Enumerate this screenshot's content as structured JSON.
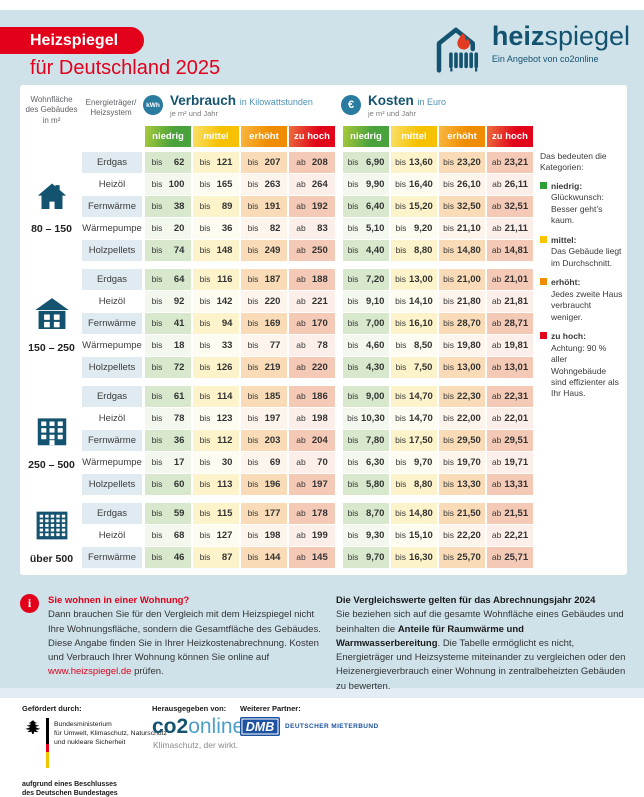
{
  "header": {
    "badge": "Heizspiegel",
    "subtitle": "für Deutschland 2025",
    "logo_bold": "heiz",
    "logo_light": "spiegel",
    "logo_tagline": "Ein Angebot von co2online"
  },
  "table": {
    "col_size_header": "Wohnfläche des Gebäudes in m²",
    "col_fuel_header": "Energie­träger/ Heizsystem",
    "verbrauch": {
      "icon": "kWh",
      "title": "Verbrauch",
      "unit": "in Kilowattstunden",
      "sub": "je m² und Jahr"
    },
    "kosten": {
      "icon": "€",
      "title": "Kosten",
      "unit": "in Euro",
      "sub": "je m² und Jahr"
    },
    "categories": [
      "niedrig",
      "mittel",
      "erhöht",
      "zu hoch"
    ],
    "blocks": [
      {
        "label": "80 – 150",
        "icon": "house-small",
        "rows": [
          {
            "fuel": "Erdgas",
            "verbrauch": [
              [
                "bis",
                "62"
              ],
              [
                "bis",
                "121"
              ],
              [
                "bis",
                "207"
              ],
              [
                "ab",
                "208"
              ]
            ],
            "kosten": [
              [
                "bis",
                "6,90"
              ],
              [
                "bis",
                "13,60"
              ],
              [
                "bis",
                "23,20"
              ],
              [
                "ab",
                "23,21"
              ]
            ]
          },
          {
            "fuel": "Heizöl",
            "verbrauch": [
              [
                "bis",
                "100"
              ],
              [
                "bis",
                "165"
              ],
              [
                "bis",
                "263"
              ],
              [
                "ab",
                "264"
              ]
            ],
            "kosten": [
              [
                "bis",
                "9,90"
              ],
              [
                "bis",
                "16,40"
              ],
              [
                "bis",
                "26,10"
              ],
              [
                "ab",
                "26,11"
              ]
            ]
          },
          {
            "fuel": "Fernwärme",
            "verbrauch": [
              [
                "bis",
                "38"
              ],
              [
                "bis",
                "89"
              ],
              [
                "bis",
                "191"
              ],
              [
                "ab",
                "192"
              ]
            ],
            "kosten": [
              [
                "bis",
                "6,40"
              ],
              [
                "bis",
                "15,20"
              ],
              [
                "bis",
                "32,50"
              ],
              [
                "ab",
                "32,51"
              ]
            ]
          },
          {
            "fuel": "Wärmepumpe",
            "verbrauch": [
              [
                "bis",
                "20"
              ],
              [
                "bis",
                "36"
              ],
              [
                "bis",
                "82"
              ],
              [
                "ab",
                "83"
              ]
            ],
            "kosten": [
              [
                "bis",
                "5,10"
              ],
              [
                "bis",
                "9,20"
              ],
              [
                "bis",
                "21,10"
              ],
              [
                "ab",
                "21,11"
              ]
            ]
          },
          {
            "fuel": "Holzpellets",
            "verbrauch": [
              [
                "bis",
                "74"
              ],
              [
                "bis",
                "148"
              ],
              [
                "bis",
                "249"
              ],
              [
                "ab",
                "250"
              ]
            ],
            "kosten": [
              [
                "bis",
                "4,40"
              ],
              [
                "bis",
                "8,80"
              ],
              [
                "bis",
                "14,80"
              ],
              [
                "ab",
                "14,81"
              ]
            ]
          }
        ]
      },
      {
        "label": "150 – 250",
        "icon": "house-medium",
        "rows": [
          {
            "fuel": "Erdgas",
            "verbrauch": [
              [
                "bis",
                "64"
              ],
              [
                "bis",
                "116"
              ],
              [
                "bis",
                "187"
              ],
              [
                "ab",
                "188"
              ]
            ],
            "kosten": [
              [
                "bis",
                "7,20"
              ],
              [
                "bis",
                "13,00"
              ],
              [
                "bis",
                "21,00"
              ],
              [
                "ab",
                "21,01"
              ]
            ]
          },
          {
            "fuel": "Heizöl",
            "verbrauch": [
              [
                "bis",
                "92"
              ],
              [
                "bis",
                "142"
              ],
              [
                "bis",
                "220"
              ],
              [
                "ab",
                "221"
              ]
            ],
            "kosten": [
              [
                "bis",
                "9,10"
              ],
              [
                "bis",
                "14,10"
              ],
              [
                "bis",
                "21,80"
              ],
              [
                "ab",
                "21,81"
              ]
            ]
          },
          {
            "fuel": "Fernwärme",
            "verbrauch": [
              [
                "bis",
                "41"
              ],
              [
                "bis",
                "94"
              ],
              [
                "bis",
                "169"
              ],
              [
                "ab",
                "170"
              ]
            ],
            "kosten": [
              [
                "bis",
                "7,00"
              ],
              [
                "bis",
                "16,10"
              ],
              [
                "bis",
                "28,70"
              ],
              [
                "ab",
                "28,71"
              ]
            ]
          },
          {
            "fuel": "Wärmepumpe",
            "verbrauch": [
              [
                "bis",
                "18"
              ],
              [
                "bis",
                "33"
              ],
              [
                "bis",
                "77"
              ],
              [
                "ab",
                "78"
              ]
            ],
            "kosten": [
              [
                "bis",
                "4,60"
              ],
              [
                "bis",
                "8,50"
              ],
              [
                "bis",
                "19,80"
              ],
              [
                "ab",
                "19,81"
              ]
            ]
          },
          {
            "fuel": "Holzpellets",
            "verbrauch": [
              [
                "bis",
                "72"
              ],
              [
                "bis",
                "126"
              ],
              [
                "bis",
                "219"
              ],
              [
                "ab",
                "220"
              ]
            ],
            "kosten": [
              [
                "bis",
                "4,30"
              ],
              [
                "bis",
                "7,50"
              ],
              [
                "bis",
                "13,00"
              ],
              [
                "ab",
                "13,01"
              ]
            ]
          }
        ]
      },
      {
        "label": "250 – 500",
        "icon": "building",
        "rows": [
          {
            "fuel": "Erdgas",
            "verbrauch": [
              [
                "bis",
                "61"
              ],
              [
                "bis",
                "114"
              ],
              [
                "bis",
                "185"
              ],
              [
                "ab",
                "186"
              ]
            ],
            "kosten": [
              [
                "bis",
                "9,00"
              ],
              [
                "bis",
                "14,70"
              ],
              [
                "bis",
                "22,30"
              ],
              [
                "ab",
                "22,31"
              ]
            ]
          },
          {
            "fuel": "Heizöl",
            "verbrauch": [
              [
                "bis",
                "78"
              ],
              [
                "bis",
                "123"
              ],
              [
                "bis",
                "197"
              ],
              [
                "ab",
                "198"
              ]
            ],
            "kosten": [
              [
                "bis",
                "10,30"
              ],
              [
                "bis",
                "14,70"
              ],
              [
                "bis",
                "22,00"
              ],
              [
                "ab",
                "22,01"
              ]
            ]
          },
          {
            "fuel": "Fernwärme",
            "verbrauch": [
              [
                "bis",
                "36"
              ],
              [
                "bis",
                "112"
              ],
              [
                "bis",
                "203"
              ],
              [
                "ab",
                "204"
              ]
            ],
            "kosten": [
              [
                "bis",
                "7,80"
              ],
              [
                "bis",
                "17,50"
              ],
              [
                "bis",
                "29,50"
              ],
              [
                "ab",
                "29,51"
              ]
            ]
          },
          {
            "fuel": "Wärmepumpe",
            "verbrauch": [
              [
                "bis",
                "17"
              ],
              [
                "bis",
                "30"
              ],
              [
                "bis",
                "69"
              ],
              [
                "ab",
                "70"
              ]
            ],
            "kosten": [
              [
                "bis",
                "6,30"
              ],
              [
                "bis",
                "9,70"
              ],
              [
                "bis",
                "19,70"
              ],
              [
                "ab",
                "19,71"
              ]
            ]
          },
          {
            "fuel": "Holzpellets",
            "verbrauch": [
              [
                "bis",
                "60"
              ],
              [
                "bis",
                "113"
              ],
              [
                "bis",
                "196"
              ],
              [
                "ab",
                "197"
              ]
            ],
            "kosten": [
              [
                "bis",
                "5,80"
              ],
              [
                "bis",
                "8,80"
              ],
              [
                "bis",
                "13,30"
              ],
              [
                "ab",
                "13,31"
              ]
            ]
          }
        ]
      },
      {
        "label": "über 500",
        "icon": "tower",
        "rows": [
          {
            "fuel": "Erdgas",
            "verbrauch": [
              [
                "bis",
                "59"
              ],
              [
                "bis",
                "115"
              ],
              [
                "bis",
                "177"
              ],
              [
                "ab",
                "178"
              ]
            ],
            "kosten": [
              [
                "bis",
                "8,70"
              ],
              [
                "bis",
                "14,80"
              ],
              [
                "bis",
                "21,50"
              ],
              [
                "ab",
                "21,51"
              ]
            ]
          },
          {
            "fuel": "Heizöl",
            "verbrauch": [
              [
                "bis",
                "68"
              ],
              [
                "bis",
                "127"
              ],
              [
                "bis",
                "198"
              ],
              [
                "ab",
                "199"
              ]
            ],
            "kosten": [
              [
                "bis",
                "9,30"
              ],
              [
                "bis",
                "15,10"
              ],
              [
                "bis",
                "22,20"
              ],
              [
                "ab",
                "22,21"
              ]
            ]
          },
          {
            "fuel": "Fernwärme",
            "verbrauch": [
              [
                "bis",
                "46"
              ],
              [
                "bis",
                "87"
              ],
              [
                "bis",
                "144"
              ],
              [
                "ab",
                "145"
              ]
            ],
            "kosten": [
              [
                "bis",
                "9,70"
              ],
              [
                "bis",
                "16,30"
              ],
              [
                "bis",
                "25,70"
              ],
              [
                "ab",
                "25,71"
              ]
            ]
          }
        ]
      }
    ]
  },
  "legend": {
    "title": "Das bedeuten die Kategorien:",
    "items": [
      {
        "title": "niedrig:",
        "desc": "Glückwunsch: Besser geht’s kaum.",
        "color": "#2e9e36"
      },
      {
        "title": "mittel:",
        "desc": "Das Gebäude liegt im Durchschnitt.",
        "color": "#fdc400"
      },
      {
        "title": "erhöht:",
        "desc": "Jedes zweite Haus verbraucht weniger.",
        "color": "#f08c00"
      },
      {
        "title": "zu hoch:",
        "desc": "Achtung: 90 % aller Wohngebäude sind effizienter als Ihr Haus.",
        "color": "#e2051a"
      }
    ]
  },
  "info_left": {
    "heading": "Sie wohnen in einer Wohnung?",
    "body1": "Dann brauchen Sie für den Vergleich mit dem Heizspiegel nicht Ihre Wohnungsfläche, sondern die Gesamtfläche des Gebäudes. Diese Angabe finden Sie in Ihrer Heizkosten­abrechnung. Kosten und Verbrauch Ihrer Wohnung können Sie online auf ",
    "link": "www.heizspiegel.de",
    "body2": " prüfen."
  },
  "info_right": {
    "heading": "Die Vergleichswerte gelten für das Abrechnungsjahr 2024",
    "body1": "Sie beziehen sich auf die gesamte Wohnfläche eines Gebäudes und beinhalten die ",
    "bold": "Anteile für Raumwärme und Warmwasserbereitung",
    "body2": ". Die Tabelle ermöglicht es nicht, Energieträger und Heizsysteme miteinander zu vergleichen oder den Heizenergieverbrauch einer Wohnung in zentralbeheizten Gebäuden zu bewerten."
  },
  "footer": {
    "funding_label": "Gefördert durch:",
    "ministry_lines": [
      "Bundesministerium",
      "für Umwelt, Klimaschutz, Naturschutz",
      "und nukleare Sicherheit"
    ],
    "note_lines": [
      "aufgrund eines Beschlusses",
      "des Deutschen Bundestages"
    ],
    "publisher_label": "Herausgegeben von:",
    "publisher_bold": "co2",
    "publisher_light": "online",
    "publisher_tagline": "Klimaschutz, der wirkt.",
    "partner_label": "Weiterer Partner:",
    "partner_logo": "DMB",
    "partner_name": "DEUTSCHER MIETERBUND"
  }
}
